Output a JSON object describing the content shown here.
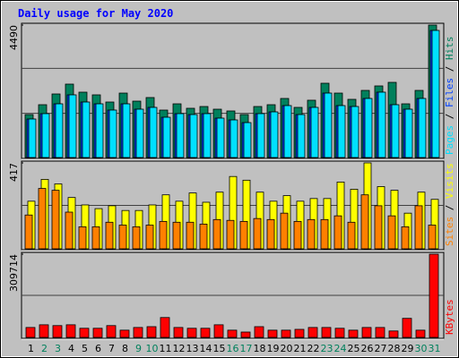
{
  "chart_data": [
    {
      "type": "bar",
      "title": "Daily usage for May 2020",
      "separator": " / ",
      "ylim": [
        0,
        4490
      ],
      "yticks": [
        4490
      ],
      "series": [
        {
          "name": "Hits",
          "color": "#00805c",
          "values": [
            1456,
            1790,
            2154,
            2488,
            2215,
            2124,
            1881,
            2184,
            1911,
            2033,
            1608,
            1820,
            1669,
            1729,
            1638,
            1578,
            1456,
            1729,
            1790,
            2002,
            1699,
            1942,
            2518,
            2184,
            1972,
            2275,
            2427,
            2548,
            1820,
            2275,
            4490
          ]
        },
        {
          "name": "Files",
          "color": "#0040ff",
          "values": [
            1305,
            1487,
            1820,
            2124,
            1881,
            1820,
            1608,
            1820,
            1638,
            1699,
            1365,
            1487,
            1456,
            1487,
            1335,
            1274,
            1183,
            1487,
            1547,
            1760,
            1456,
            1699,
            2184,
            1760,
            1729,
            2002,
            2215,
            1790,
            1638,
            2002,
            4308
          ]
        },
        {
          "name": "Pages",
          "color": "#00e0ff",
          "values": [
            1305,
            1487,
            1820,
            2124,
            1881,
            1820,
            1608,
            1820,
            1638,
            1699,
            1365,
            1487,
            1456,
            1487,
            1335,
            1274,
            1183,
            1487,
            1547,
            1760,
            1456,
            1699,
            2184,
            1760,
            1729,
            2002,
            2215,
            1790,
            1638,
            2002,
            4308
          ]
        }
      ]
    },
    {
      "type": "bar",
      "separator": " / ",
      "ylim": [
        0,
        417
      ],
      "yticks": [
        417
      ],
      "series": [
        {
          "name": "Visits",
          "color": "#ffff00",
          "values": [
            231,
            337,
            315,
            249,
            213,
            195,
            209,
            186,
            186,
            213,
            262,
            231,
            271,
            226,
            275,
            351,
            333,
            275,
            231,
            258,
            231,
            244,
            244,
            324,
            289,
            417,
            302,
            284,
            173,
            275,
            240
          ]
        },
        {
          "name": "Sites",
          "color": "#ff8000",
          "values": [
            164,
            293,
            284,
            178,
            107,
            107,
            129,
            115,
            107,
            115,
            133,
            129,
            129,
            120,
            142,
            138,
            133,
            147,
            142,
            173,
            133,
            142,
            142,
            160,
            129,
            262,
            209,
            160,
            107,
            209,
            115
          ]
        }
      ]
    },
    {
      "type": "bar",
      "ylim": [
        0,
        309714
      ],
      "yticks": [
        309714
      ],
      "categories": [
        "1",
        "2",
        "3",
        "4",
        "5",
        "6",
        "7",
        "8",
        "9",
        "10",
        "11",
        "12",
        "13",
        "14",
        "15",
        "16",
        "17",
        "18",
        "19",
        "20",
        "21",
        "22",
        "23",
        "24",
        "25",
        "26",
        "27",
        "28",
        "29",
        "30",
        "31"
      ],
      "category_colors": [
        "#000000",
        "#00805c",
        "#00805c",
        "#000000",
        "#000000",
        "#000000",
        "#000000",
        "#000000",
        "#00805c",
        "#00805c",
        "#000000",
        "#000000",
        "#000000",
        "#000000",
        "#000000",
        "#00805c",
        "#00805c",
        "#000000",
        "#000000",
        "#000000",
        "#000000",
        "#000000",
        "#00805c",
        "#00805c",
        "#000000",
        "#000000",
        "#000000",
        "#000000",
        "#000000",
        "#00805c",
        "#00805c"
      ],
      "series": [
        {
          "name": "KBytes",
          "color": "#ff0000",
          "values": [
            37000,
            47000,
            44000,
            47000,
            34000,
            34000,
            44000,
            27000,
            37000,
            40000,
            74000,
            37000,
            34000,
            34000,
            47000,
            27000,
            20000,
            40000,
            27000,
            27000,
            30000,
            37000,
            37000,
            34000,
            27000,
            37000,
            37000,
            24000,
            71000,
            27000,
            309714
          ]
        }
      ]
    }
  ]
}
